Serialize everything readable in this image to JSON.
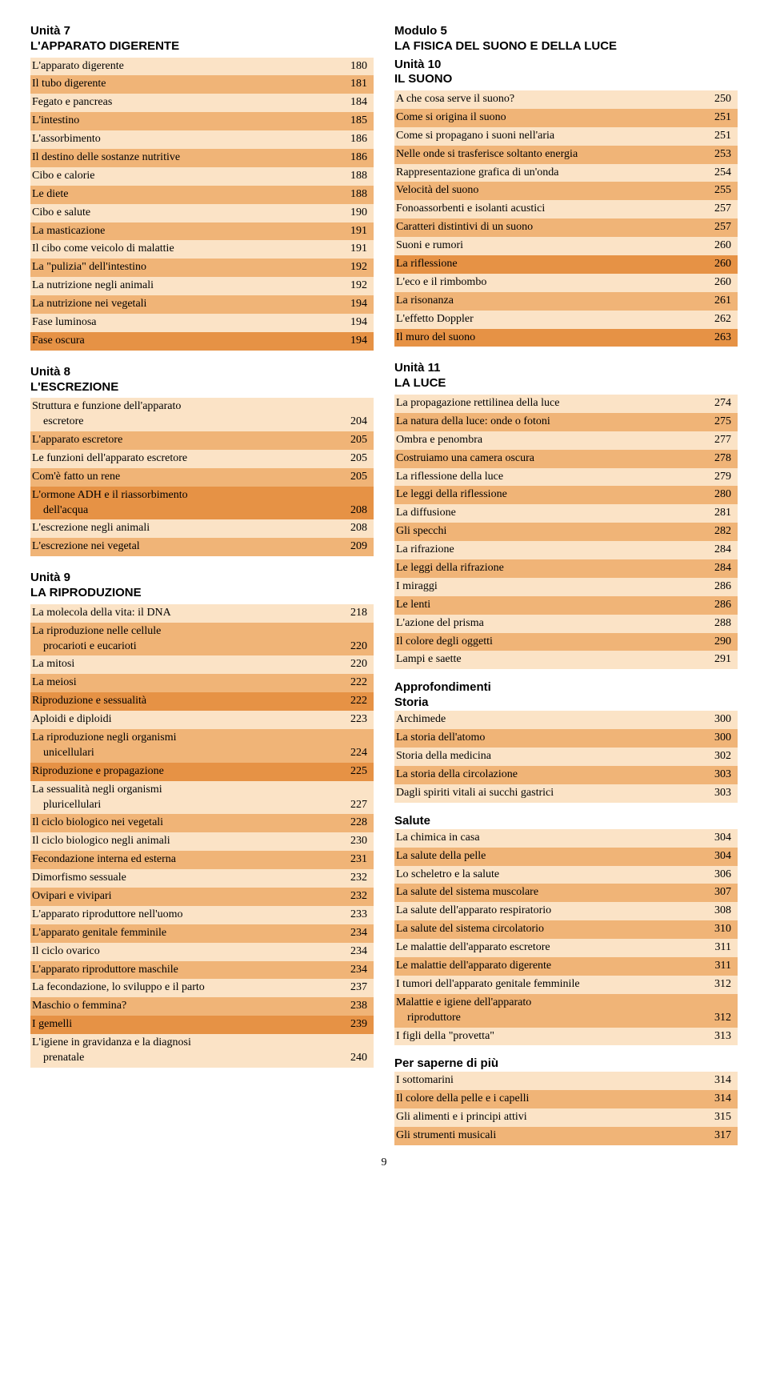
{
  "colors": {
    "light": "#fbe3c6",
    "dark": "#f0b477",
    "strong": "#e69245"
  },
  "left": {
    "units": [
      {
        "title": [
          "Unità 7",
          "L'APPARATO DIGERENTE"
        ],
        "rows": [
          {
            "label": "L'apparato digerente",
            "page": "180",
            "shade": "light"
          },
          {
            "label": "Il tubo digerente",
            "page": "181",
            "shade": "dark"
          },
          {
            "label": "Fegato e pancreas",
            "page": "184",
            "shade": "light"
          },
          {
            "label": "L'intestino",
            "page": "185",
            "shade": "dark"
          },
          {
            "label": "L'assorbimento",
            "page": "186",
            "shade": "light"
          },
          {
            "label": "Il destino delle sostanze nutritive",
            "page": "186",
            "shade": "dark"
          },
          {
            "label": "Cibo e calorie",
            "page": "188",
            "shade": "light"
          },
          {
            "label": "Le diete",
            "page": "188",
            "shade": "dark"
          },
          {
            "label": "Cibo e salute",
            "page": "190",
            "shade": "light"
          },
          {
            "label": "La masticazione",
            "page": "191",
            "shade": "dark"
          },
          {
            "label": "Il cibo come veicolo di malattie",
            "page": "191",
            "shade": "light"
          },
          {
            "label": "La \"pulizia\" dell'intestino",
            "page": "192",
            "shade": "dark"
          },
          {
            "label": "La nutrizione negli animali",
            "page": "192",
            "shade": "light"
          },
          {
            "label": "La nutrizione nei vegetali",
            "page": "194",
            "shade": "dark"
          },
          {
            "label": "Fase luminosa",
            "page": "194",
            "shade": "light"
          },
          {
            "label": "Fase oscura",
            "page": "194",
            "shade": "strong"
          }
        ]
      },
      {
        "title": [
          "Unità 8",
          "L'ESCREZIONE"
        ],
        "rows": [
          {
            "label": "Struttura e funzione dell'apparato",
            "cont": "escretore",
            "page": "204",
            "shade": "light"
          },
          {
            "label": "L'apparato escretore",
            "page": "205",
            "shade": "dark"
          },
          {
            "label": "Le funzioni dell'apparato escretore",
            "page": "205",
            "shade": "light"
          },
          {
            "label": "Com'è fatto un rene",
            "page": "205",
            "shade": "dark"
          },
          {
            "label": "L'ormone ADH e il riassorbimento",
            "cont": "dell'acqua",
            "page": "208",
            "shade": "strong"
          },
          {
            "label": "L'escrezione negli animali",
            "page": "208",
            "shade": "light"
          },
          {
            "label": "L'escrezione nei vegetal",
            "page": "209",
            "shade": "dark"
          }
        ]
      },
      {
        "title": [
          "Unità 9",
          "LA RIPRODUZIONE"
        ],
        "rows": [
          {
            "label": "La molecola della vita: il DNA",
            "page": "218",
            "shade": "light"
          },
          {
            "label": "La riproduzione nelle cellule",
            "cont": "procarioti e eucarioti",
            "page": "220",
            "shade": "dark"
          },
          {
            "label": "La mitosi",
            "page": "220",
            "shade": "light"
          },
          {
            "label": "La meiosi",
            "page": "222",
            "shade": "dark"
          },
          {
            "label": "Riproduzione e sessualità",
            "page": "222",
            "shade": "strong"
          },
          {
            "label": "Aploidi e diploidi",
            "page": "223",
            "shade": "light"
          },
          {
            "label": "La riproduzione negli organismi",
            "cont": "unicellulari",
            "page": "224",
            "shade": "dark"
          },
          {
            "label": "Riproduzione e propagazione",
            "page": "225",
            "shade": "strong"
          },
          {
            "label": "La sessualità negli organismi",
            "cont": "pluricellulari",
            "page": "227",
            "shade": "light"
          },
          {
            "label": "Il ciclo biologico nei vegetali",
            "page": "228",
            "shade": "dark"
          },
          {
            "label": "Il ciclo biologico negli animali",
            "page": "230",
            "shade": "light"
          },
          {
            "label": "Fecondazione interna ed esterna",
            "page": "231",
            "shade": "dark"
          },
          {
            "label": "Dimorfismo sessuale",
            "page": "232",
            "shade": "light"
          },
          {
            "label": "Ovipari e vivipari",
            "page": "232",
            "shade": "dark"
          },
          {
            "label": "L'apparato riproduttore nell'uomo",
            "page": "233",
            "shade": "light"
          },
          {
            "label": "L'apparato genitale femminile",
            "page": "234",
            "shade": "dark"
          },
          {
            "label": "Il ciclo ovarico",
            "page": "234",
            "shade": "light"
          },
          {
            "label": "L'apparato riproduttore maschile",
            "page": "234",
            "shade": "dark"
          },
          {
            "label": "La fecondazione, lo sviluppo e il parto",
            "page": "237",
            "shade": "light"
          },
          {
            "label": "Maschio o femmina?",
            "page": "238",
            "shade": "dark"
          },
          {
            "label": "I gemelli",
            "page": "239",
            "shade": "strong"
          },
          {
            "label": "L'igiene in gravidanza e la diagnosi",
            "cont": "prenatale",
            "page": "240",
            "shade": "light"
          }
        ]
      }
    ]
  },
  "right": {
    "moduleTitle": [
      "Modulo 5",
      "LA FISICA DEL SUONO E DELLA LUCE"
    ],
    "units": [
      {
        "title": [
          "Unità 10",
          "IL SUONO"
        ],
        "rows": [
          {
            "label": "A che cosa serve il suono?",
            "page": "250",
            "shade": "light"
          },
          {
            "label": "Come si origina il suono",
            "page": "251",
            "shade": "dark"
          },
          {
            "label": "Come si propagano i suoni nell'aria",
            "page": "251",
            "shade": "light"
          },
          {
            "label": "Nelle onde si trasferisce soltanto energia",
            "page": "253",
            "shade": "dark"
          },
          {
            "label": "Rappresentazione grafica di un'onda",
            "page": "254",
            "shade": "light"
          },
          {
            "label": "Velocità del suono",
            "page": "255",
            "shade": "dark"
          },
          {
            "label": "Fonoassorbenti e isolanti acustici",
            "page": "257",
            "shade": "light"
          },
          {
            "label": "Caratteri distintivi di un suono",
            "page": "257",
            "shade": "dark"
          },
          {
            "label": "Suoni e rumori",
            "page": "260",
            "shade": "light"
          },
          {
            "label": "La riflessione",
            "page": "260",
            "shade": "strong"
          },
          {
            "label": "L'eco e il rimbombo",
            "page": "260",
            "shade": "light"
          },
          {
            "label": "La risonanza",
            "page": "261",
            "shade": "dark"
          },
          {
            "label": "L'effetto Doppler",
            "page": "262",
            "shade": "light"
          },
          {
            "label": "Il muro del suono",
            "page": "263",
            "shade": "strong"
          }
        ]
      },
      {
        "title": [
          "Unità 11",
          "LA LUCE"
        ],
        "rows": [
          {
            "label": "La propagazione rettilinea della luce",
            "page": "274",
            "shade": "light"
          },
          {
            "label": "La natura della luce: onde o fotoni",
            "page": "275",
            "shade": "dark"
          },
          {
            "label": "Ombra e penombra",
            "page": "277",
            "shade": "light"
          },
          {
            "label": "Costruiamo una camera oscura",
            "page": "278",
            "shade": "dark"
          },
          {
            "label": "La riflessione della luce",
            "page": "279",
            "shade": "light"
          },
          {
            "label": "Le leggi della riflessione",
            "page": "280",
            "shade": "dark"
          },
          {
            "label": "La diffusione",
            "page": "281",
            "shade": "light"
          },
          {
            "label": "Gli specchi",
            "page": "282",
            "shade": "dark"
          },
          {
            "label": "La rifrazione",
            "page": "284",
            "shade": "light"
          },
          {
            "label": "Le leggi della rifrazione",
            "page": "284",
            "shade": "dark"
          },
          {
            "label": "I miraggi",
            "page": "286",
            "shade": "light"
          },
          {
            "label": "Le lenti",
            "page": "286",
            "shade": "dark"
          },
          {
            "label": "L'azione del prisma",
            "page": "288",
            "shade": "light"
          },
          {
            "label": "Il colore degli oggetti",
            "page": "290",
            "shade": "dark"
          },
          {
            "label": "Lampi e saette",
            "page": "291",
            "shade": "light"
          }
        ]
      }
    ],
    "sections": [
      {
        "title": [
          "Approfondimenti",
          "Storia"
        ],
        "rows": [
          {
            "label": "Archimede",
            "page": "300",
            "shade": "light"
          },
          {
            "label": "La storia dell'atomo",
            "page": "300",
            "shade": "dark"
          },
          {
            "label": "Storia della medicina",
            "page": "302",
            "shade": "light"
          },
          {
            "label": "La storia della circolazione",
            "page": "303",
            "shade": "dark"
          },
          {
            "label": "Dagli spiriti vitali ai succhi gastrici",
            "page": "303",
            "shade": "light"
          }
        ]
      },
      {
        "title": [
          "Salute"
        ],
        "rows": [
          {
            "label": "La chimica in casa",
            "page": "304",
            "shade": "light"
          },
          {
            "label": "La salute della pelle",
            "page": "304",
            "shade": "dark"
          },
          {
            "label": "Lo scheletro e la salute",
            "page": "306",
            "shade": "light"
          },
          {
            "label": "La salute del sistema muscolare",
            "page": "307",
            "shade": "dark"
          },
          {
            "label": "La salute dell'apparato respiratorio",
            "page": "308",
            "shade": "light"
          },
          {
            "label": "La salute del sistema circolatorio",
            "page": "310",
            "shade": "dark"
          },
          {
            "label": "Le malattie dell'apparato escretore",
            "page": "311",
            "shade": "light"
          },
          {
            "label": "Le malattie dell'apparato digerente",
            "page": "311",
            "shade": "dark"
          },
          {
            "label": "I tumori dell'apparato genitale femminile",
            "page": "312",
            "shade": "light"
          },
          {
            "label": "Malattie e igiene dell'apparato",
            "cont": "riproduttore",
            "page": "312",
            "shade": "dark"
          },
          {
            "label": "I figli della \"provetta\"",
            "page": "313",
            "shade": "light"
          }
        ]
      },
      {
        "title": [
          "Per saperne di più"
        ],
        "rows": [
          {
            "label": "I sottomarini",
            "page": "314",
            "shade": "light"
          },
          {
            "label": "Il colore della pelle e i capelli",
            "page": "314",
            "shade": "dark"
          },
          {
            "label": "Gli alimenti e i principi attivi",
            "page": "315",
            "shade": "light"
          },
          {
            "label": "Gli strumenti musicali",
            "page": "317",
            "shade": "dark"
          }
        ]
      }
    ]
  },
  "pageNumber": "9"
}
